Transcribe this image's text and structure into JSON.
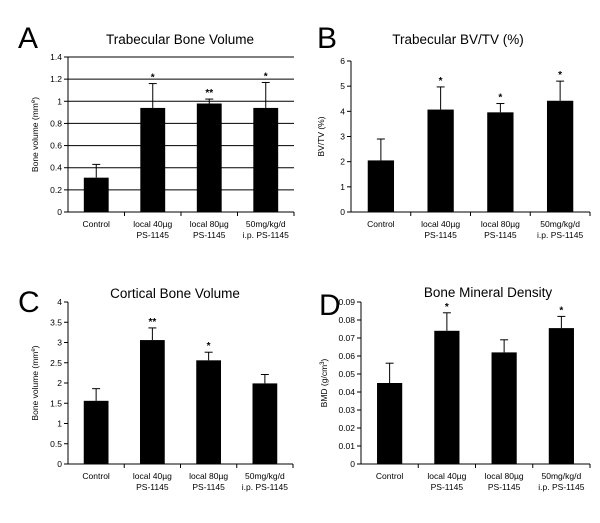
{
  "chart_data": [
    {
      "panel": "A",
      "type": "bar",
      "title": "Trabecular Bone Volume",
      "ylabel": "Bone volume (mm^e)",
      "ylim": [
        0,
        1.4
      ],
      "yticks": [
        "0",
        "0.2",
        "0.4",
        "0.6",
        "0.8",
        "1",
        "1.2",
        "1.4"
      ],
      "grid": true,
      "categories": [
        [
          "Control"
        ],
        [
          "local 40µg",
          "PS-1145"
        ],
        [
          "local 80µg",
          "PS-1145"
        ],
        [
          "50mg/kg/d",
          "i.p. PS-1145"
        ]
      ],
      "values": [
        0.31,
        0.94,
        0.98,
        0.94
      ],
      "errors": [
        0.12,
        0.22,
        0.04,
        0.23
      ],
      "significance": [
        "",
        "*",
        "**",
        "*"
      ]
    },
    {
      "panel": "B",
      "type": "bar",
      "title": "Trabecular BV/TV (%)",
      "ylabel": "BV/TV (%)",
      "ylim": [
        0,
        6
      ],
      "yticks": [
        "0",
        "1",
        "2",
        "3",
        "4",
        "5",
        "6"
      ],
      "grid": false,
      "categories": [
        [
          "Control"
        ],
        [
          "local 40µg",
          "PS-1145"
        ],
        [
          "local 80µg",
          "PS-1145"
        ],
        [
          "50mg/kg/d",
          "i.p. PS-1145"
        ]
      ],
      "values": [
        2.05,
        4.07,
        3.96,
        4.42
      ],
      "errors": [
        0.85,
        0.9,
        0.35,
        0.78
      ],
      "significance": [
        "",
        "*",
        "*",
        "*"
      ]
    },
    {
      "panel": "C",
      "type": "bar",
      "title": "Cortical Bone Volume",
      "ylabel": "Bone volume (mm^e)",
      "ylim": [
        0,
        4
      ],
      "yticks": [
        "0",
        "0.5",
        "1",
        "1.5",
        "2",
        "2.5",
        "3",
        "3.5",
        "4"
      ],
      "grid": false,
      "categories": [
        [
          "Control"
        ],
        [
          "local 40µg",
          "PS-1145"
        ],
        [
          "local 80µg",
          "PS-1145"
        ],
        [
          "50mg/kg/d",
          "i.p. PS-1145"
        ]
      ],
      "values": [
        1.56,
        3.06,
        2.56,
        1.99
      ],
      "errors": [
        0.3,
        0.3,
        0.2,
        0.22
      ],
      "significance": [
        "",
        "**",
        "*",
        ""
      ]
    },
    {
      "panel": "D",
      "type": "bar",
      "title": "Bone Mineral Density",
      "ylabel": "BMD (g/cm^3)",
      "ylim": [
        0,
        0.09
      ],
      "yticks": [
        "0",
        "0.01",
        "0.02",
        "0.03",
        "0.04",
        "0.05",
        "0.06",
        "0.07",
        "0.08",
        "0.09"
      ],
      "grid": false,
      "categories": [
        [
          "Control"
        ],
        [
          "local 40µg",
          "PS-1145"
        ],
        [
          "local 80µg",
          "PS-1145"
        ],
        [
          "50mg/kg/d",
          "i.p. PS-1145"
        ]
      ],
      "values": [
        0.045,
        0.074,
        0.062,
        0.0755
      ],
      "errors": [
        0.011,
        0.01,
        0.007,
        0.0065
      ],
      "significance": [
        "",
        "*",
        "",
        "*"
      ]
    }
  ]
}
